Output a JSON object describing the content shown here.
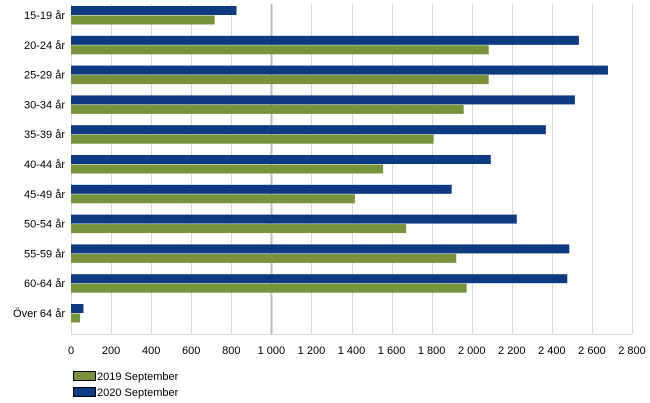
{
  "chart_data": {
    "type": "bar",
    "orientation": "horizontal",
    "categories": [
      "15-19 år",
      "20-24 år",
      "25-29 år",
      "30-34 år",
      "35-39 år",
      "40-44 år",
      "45-49 år",
      "50-54 år",
      "55-59 år",
      "60-64 år",
      "Över 64 år"
    ],
    "series": [
      {
        "name": "2019 September",
        "color": "#77933c",
        "values": [
          717,
          2085,
          2085,
          1960,
          1810,
          1558,
          1417,
          1673,
          1923,
          1975,
          45
        ]
      },
      {
        "name": "2020 September",
        "color": "#0d3a80",
        "values": [
          826,
          2535,
          2680,
          2515,
          2370,
          2095,
          1900,
          2225,
          2487,
          2477,
          62
        ]
      }
    ],
    "xlim": [
      0,
      2800
    ],
    "xticks": [
      0,
      200,
      400,
      600,
      800,
      1000,
      1200,
      1400,
      1600,
      1800,
      2000,
      2200,
      2400,
      2600,
      2800
    ],
    "xtick_labels": [
      "0",
      "200",
      "400",
      "600",
      "800",
      "1 000",
      "1 200",
      "1 400",
      "1 600",
      "1 800",
      "2 000",
      "2 200",
      "2 400",
      "2 600",
      "2 800"
    ],
    "grid": true,
    "legend_position": "bottom-left"
  }
}
